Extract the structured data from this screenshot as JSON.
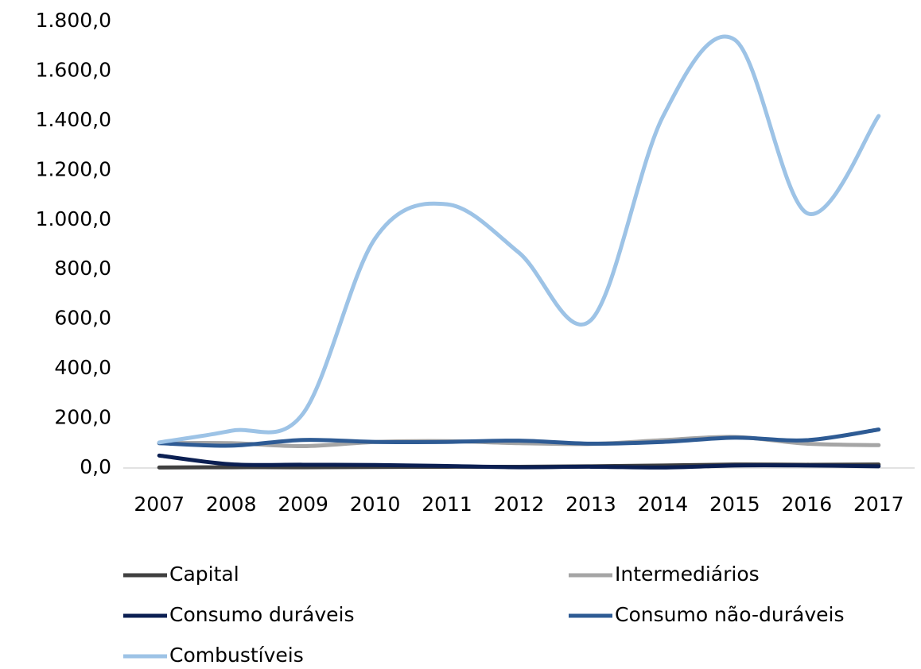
{
  "chart_data": {
    "type": "line",
    "categories": [
      "2007",
      "2008",
      "2009",
      "2010",
      "2011",
      "2012",
      "2013",
      "2014",
      "2015",
      "2016",
      "2017"
    ],
    "series": [
      {
        "name": "Capital",
        "color": "#404040",
        "values": [
          2,
          3,
          3,
          4,
          5,
          5,
          7,
          10,
          14,
          13,
          14
        ]
      },
      {
        "name": "Intermediários",
        "color": "#a5a5a5",
        "values": [
          100,
          100,
          88,
          105,
          108,
          100,
          97,
          112,
          125,
          98,
          92
        ]
      },
      {
        "name": "Consumo duráveis",
        "color": "#0b1f52",
        "values": [
          50,
          15,
          13,
          12,
          8,
          3,
          5,
          2,
          10,
          10,
          7
        ]
      },
      {
        "name": "Consumo não-duráveis",
        "color": "#2e5b94",
        "values": [
          100,
          90,
          113,
          105,
          105,
          110,
          98,
          105,
          122,
          112,
          155
        ]
      },
      {
        "name": "Combustíveis",
        "color": "#9dc3e6",
        "values": [
          103,
          150,
          220,
          925,
          1063,
          868,
          596,
          1416,
          1726,
          1028,
          1419
        ]
      }
    ],
    "ylim": [
      0,
      1800
    ],
    "yticks": [
      {
        "value": 0,
        "label": "0,0"
      },
      {
        "value": 200,
        "label": "200,0"
      },
      {
        "value": 400,
        "label": "400,0"
      },
      {
        "value": 600,
        "label": "600,0"
      },
      {
        "value": 800,
        "label": "800,0"
      },
      {
        "value": 1000,
        "label": "1.000,0"
      },
      {
        "value": 1200,
        "label": "1.200,0"
      },
      {
        "value": 1400,
        "label": "1.400,0"
      },
      {
        "value": 1600,
        "label": "1.600,0"
      },
      {
        "value": 1800,
        "label": "1.800,0"
      }
    ],
    "grid": false,
    "legend": "bottom"
  }
}
